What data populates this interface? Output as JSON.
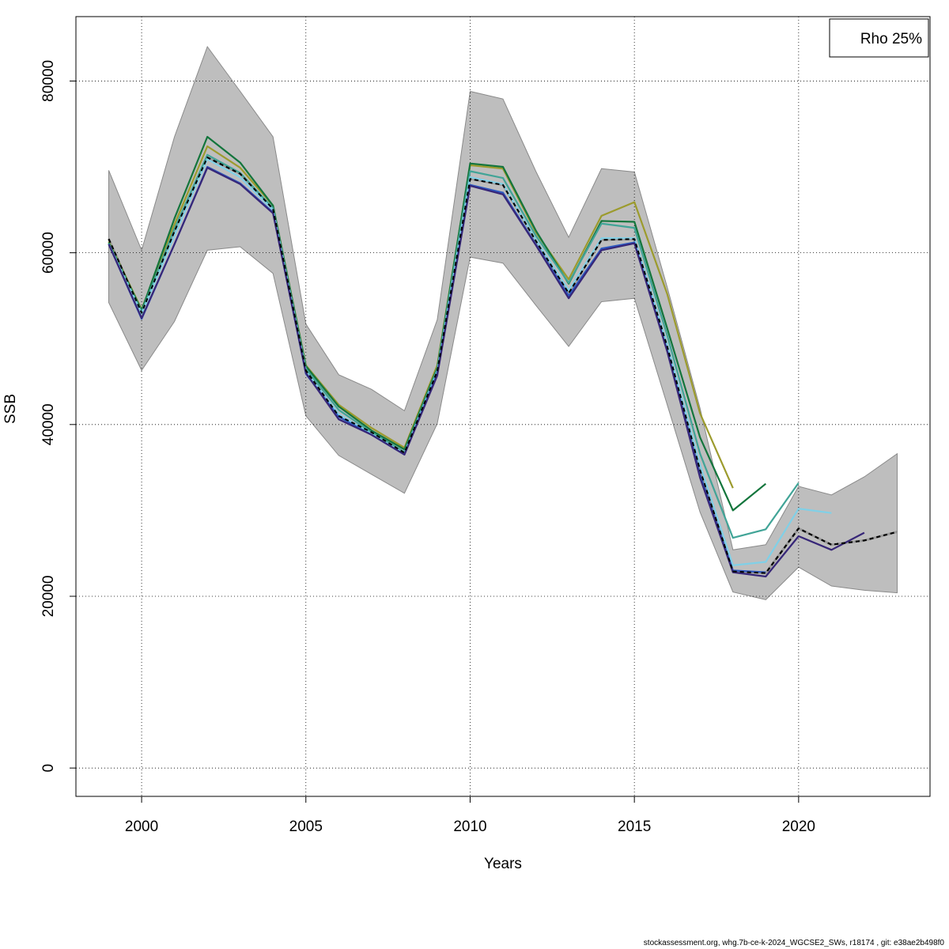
{
  "chart_data": {
    "type": "line",
    "xlabel": "Years",
    "ylabel": "SSB",
    "xlim": [
      1998,
      2024
    ],
    "ylim": [
      -3300,
      87500
    ],
    "xticks": [
      2000,
      2005,
      2010,
      2015,
      2020
    ],
    "yticks": [
      0,
      20000,
      40000,
      60000,
      80000
    ],
    "grid": true,
    "legend_position": "top-right",
    "legend_text": "Rho 25%",
    "band_color": "#bebebe",
    "confidence_band": {
      "x": [
        1999,
        2000,
        2001,
        2002,
        2003,
        2004,
        2005,
        2006,
        2007,
        2008,
        2009,
        2010,
        2011,
        2012,
        2013,
        2014,
        2015,
        2016,
        2017,
        2018,
        2019,
        2020,
        2021,
        2022,
        2023
      ],
      "lower": [
        54200,
        46300,
        52000,
        60300,
        60700,
        57600,
        41000,
        36400,
        34200,
        32000,
        40100,
        59500,
        58800,
        53900,
        49100,
        54300,
        54700,
        42300,
        29800,
        20500,
        19600,
        23400,
        21200,
        20700,
        20400
      ],
      "upper": [
        69600,
        60300,
        73500,
        84000,
        78800,
        73500,
        51700,
        45800,
        44100,
        41600,
        52200,
        78800,
        77900,
        69500,
        61800,
        69800,
        69400,
        56000,
        41900,
        25400,
        26000,
        32800,
        31800,
        33900,
        36600
      ]
    },
    "series": [
      {
        "color": "#000000",
        "dashed": true,
        "x": [
          1999,
          2000,
          2001,
          2002,
          2003,
          2004,
          2005,
          2006,
          2007,
          2008,
          2009,
          2010,
          2011,
          2012,
          2013,
          2014,
          2015,
          2016,
          2017,
          2018,
          2019,
          2020,
          2021,
          2022,
          2023
        ],
        "values": [
          61600,
          53000,
          62500,
          71100,
          69200,
          65100,
          46300,
          41000,
          39100,
          36700,
          46200,
          68600,
          67900,
          61400,
          55300,
          61500,
          61600,
          49100,
          34700,
          22900,
          22700,
          27900,
          26000,
          26500,
          27500
        ]
      },
      {
        "color": "#9c9b2d",
        "dashed": false,
        "x": [
          1999,
          2000,
          2001,
          2002,
          2003,
          2004,
          2005,
          2006,
          2007,
          2008,
          2009,
          2010,
          2011,
          2012,
          2013,
          2014,
          2015,
          2016,
          2017,
          2018
        ],
        "values": [
          61300,
          53400,
          63300,
          72400,
          69900,
          65500,
          46900,
          42300,
          39600,
          37300,
          46900,
          70200,
          69800,
          62400,
          56900,
          64300,
          65900,
          55200,
          41300,
          32600
        ]
      },
      {
        "color": "#13753c",
        "dashed": false,
        "x": [
          1999,
          2000,
          2001,
          2002,
          2003,
          2004,
          2005,
          2006,
          2007,
          2008,
          2009,
          2010,
          2011,
          2012,
          2013,
          2014,
          2015,
          2016,
          2017,
          2018,
          2019
        ],
        "values": [
          61200,
          53300,
          64000,
          73500,
          70500,
          65500,
          46800,
          42100,
          39300,
          37100,
          46600,
          70400,
          70000,
          62600,
          56400,
          63700,
          63600,
          51200,
          38500,
          30000,
          33100
        ]
      },
      {
        "color": "#41a497",
        "dashed": false,
        "x": [
          1999,
          2000,
          2001,
          2002,
          2003,
          2004,
          2005,
          2006,
          2007,
          2008,
          2009,
          2010,
          2011,
          2012,
          2013,
          2014,
          2015,
          2016,
          2017,
          2018,
          2019,
          2020
        ],
        "values": [
          61100,
          53100,
          62800,
          71400,
          69300,
          65200,
          46500,
          41700,
          39100,
          36800,
          46400,
          69500,
          68700,
          62000,
          56500,
          63400,
          62900,
          50400,
          36600,
          26800,
          27800,
          33200
        ]
      },
      {
        "color": "#80d0e7",
        "dashed": false,
        "x": [
          1999,
          2000,
          2001,
          2002,
          2003,
          2004,
          2005,
          2006,
          2007,
          2008,
          2009,
          2010,
          2011,
          2012,
          2013,
          2014,
          2015,
          2016,
          2017,
          2018,
          2019,
          2020,
          2021
        ],
        "values": [
          61000,
          52900,
          62000,
          70900,
          68800,
          65000,
          46200,
          41200,
          38900,
          36600,
          46100,
          68800,
          68000,
          61500,
          55600,
          61700,
          61700,
          49300,
          35300,
          23600,
          24000,
          30200,
          29700
        ]
      },
      {
        "color": "#2d58c0",
        "dashed": false,
        "x": [
          1999,
          2000,
          2001,
          2002,
          2003,
          2004,
          2005,
          2006,
          2007,
          2008,
          2009,
          2010,
          2011,
          2012,
          2013,
          2014,
          2015,
          2016,
          2017,
          2018,
          2019
        ],
        "values": [
          61000,
          52300,
          61000,
          70000,
          68100,
          64700,
          45900,
          40900,
          38800,
          36500,
          45900,
          67900,
          67000,
          61000,
          55000,
          60500,
          61200,
          48600,
          34200,
          23000,
          22800
        ]
      },
      {
        "color": "#372678",
        "dashed": false,
        "x": [
          1999,
          2000,
          2001,
          2002,
          2003,
          2004,
          2005,
          2006,
          2007,
          2008,
          2009,
          2010,
          2011,
          2012,
          2013,
          2014,
          2015,
          2016,
          2017,
          2018,
          2019,
          2020,
          2021,
          2022
        ],
        "values": [
          61000,
          52400,
          61000,
          69900,
          68000,
          64600,
          46000,
          40600,
          38800,
          36500,
          45700,
          67800,
          66800,
          60900,
          54700,
          60300,
          61100,
          48500,
          33800,
          22800,
          22300,
          27000,
          25400,
          27400
        ]
      }
    ]
  },
  "footer": "stockassessment.org, whg.7b-ce-k-2024_WGCSE2_SWs, r18174 , git: e38ae2b498f0"
}
